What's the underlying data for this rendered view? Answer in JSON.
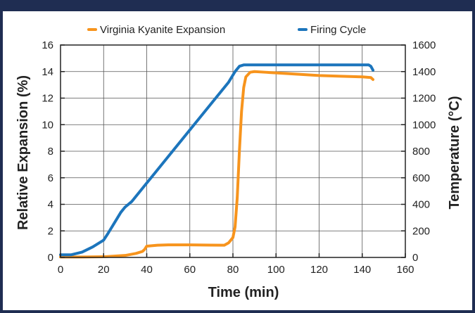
{
  "chart_data": {
    "type": "line",
    "title": "",
    "xlabel": "Time (min)",
    "ylabel": "Relative Expansion (%)",
    "y2label": "Temperature (°C)",
    "xlim": [
      0,
      160
    ],
    "ylim": [
      0,
      16
    ],
    "y2lim": [
      0,
      1600
    ],
    "grid": true,
    "legend": "top",
    "x_ticks": [
      "0",
      "20",
      "40",
      "60",
      "80",
      "100",
      "120",
      "140",
      "160"
    ],
    "y_ticks": [
      "0",
      "2",
      "4",
      "6",
      "8",
      "10",
      "12",
      "14",
      "16"
    ],
    "y2_ticks": [
      "0",
      "200",
      "400",
      "600",
      "800",
      "1000",
      "1200",
      "1400",
      "1600"
    ],
    "series": [
      {
        "name": "Virginia Kyanite Expansion",
        "color": "#f7941d",
        "axis": "left",
        "x": [
          0,
          10,
          20,
          30,
          35,
          38,
          39,
          40,
          45,
          50,
          60,
          70,
          76,
          78,
          80,
          81,
          82,
          83,
          84,
          85,
          86,
          88,
          90,
          95,
          100,
          110,
          120,
          130,
          140,
          144,
          145
        ],
        "y": [
          0.03,
          0.03,
          0.05,
          0.15,
          0.3,
          0.45,
          0.6,
          0.85,
          0.92,
          0.95,
          0.95,
          0.93,
          0.92,
          1.1,
          1.5,
          2.3,
          4.5,
          8.0,
          11.0,
          12.8,
          13.6,
          13.95,
          14.0,
          13.95,
          13.9,
          13.8,
          13.7,
          13.65,
          13.6,
          13.55,
          13.4
        ]
      },
      {
        "name": "Firing Cycle",
        "color": "#1c75bc",
        "axis": "right",
        "x": [
          0,
          5,
          10,
          15,
          20,
          22,
          25,
          28,
          30,
          33,
          40,
          50,
          60,
          70,
          78,
          81,
          83,
          85,
          90,
          100,
          110,
          120,
          130,
          140,
          143,
          144,
          145
        ],
        "y": [
          20,
          20,
          40,
          80,
          130,
          180,
          260,
          340,
          380,
          420,
          560,
          760,
          960,
          1160,
          1320,
          1400,
          1440,
          1450,
          1450,
          1450,
          1450,
          1450,
          1450,
          1450,
          1450,
          1440,
          1410
        ]
      }
    ]
  }
}
